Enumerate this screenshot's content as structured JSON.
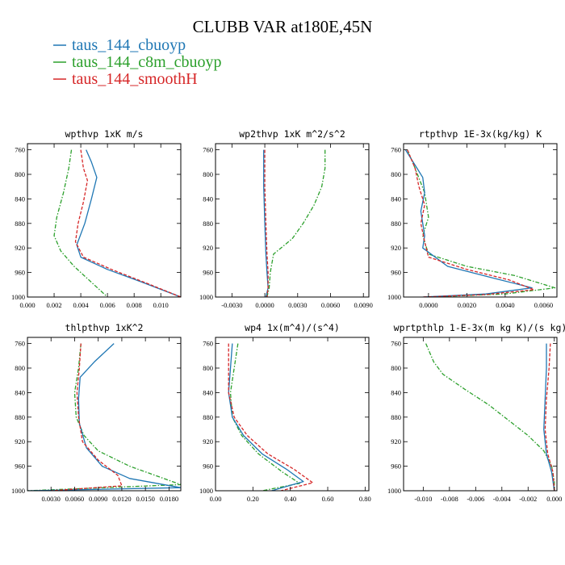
{
  "figure": {
    "title": "CLUBB VAR at180E,45N",
    "legend": [
      {
        "label": "taus_144_cbuoyp",
        "color": "#1f77b4",
        "dash": "solid"
      },
      {
        "label": "taus_144_c8m_cbuoyp",
        "color": "#2ca02c",
        "dash": "dashdot"
      },
      {
        "label": "taus_144_smoothH",
        "color": "#d62728",
        "dash": "dashed"
      }
    ]
  },
  "chart_data": [
    {
      "type": "line",
      "title": "wpthvp  1xK m/s",
      "xlim": [
        0.0,
        0.0115
      ],
      "ylim": [
        750,
        1000
      ],
      "y_reversed": true,
      "xticks": [
        0.0,
        0.002,
        0.004,
        0.006,
        0.008,
        0.01
      ],
      "xtick_labels": [
        "0.000",
        "0.002",
        "0.004",
        "0.006",
        "0.008",
        "0.010"
      ],
      "yticks": [
        760,
        800,
        840,
        880,
        920,
        960,
        1000
      ],
      "series": [
        {
          "color": "#1f77b4",
          "dash": "solid",
          "points": [
            [
              0.0044,
              760
            ],
            [
              0.0048,
              780
            ],
            [
              0.0052,
              805
            ],
            [
              0.0048,
              840
            ],
            [
              0.0043,
              880
            ],
            [
              0.0037,
              915
            ],
            [
              0.004,
              935
            ],
            [
              0.006,
              955
            ],
            [
              0.0085,
              975
            ],
            [
              0.0115,
              1000
            ]
          ]
        },
        {
          "color": "#2ca02c",
          "dash": "dashdot",
          "points": [
            [
              0.0033,
              760
            ],
            [
              0.0031,
              790
            ],
            [
              0.0027,
              830
            ],
            [
              0.0022,
              870
            ],
            [
              0.002,
              900
            ],
            [
              0.0025,
              925
            ],
            [
              0.0035,
              950
            ],
            [
              0.0045,
              970
            ],
            [
              0.0055,
              990
            ],
            [
              0.006,
              1000
            ]
          ]
        },
        {
          "color": "#d62728",
          "dash": "dashed",
          "points": [
            [
              0.004,
              760
            ],
            [
              0.0042,
              790
            ],
            [
              0.0045,
              810
            ],
            [
              0.0042,
              845
            ],
            [
              0.0038,
              880
            ],
            [
              0.0036,
              910
            ],
            [
              0.0042,
              935
            ],
            [
              0.0063,
              955
            ],
            [
              0.009,
              978
            ],
            [
              0.0115,
              1000
            ]
          ]
        }
      ]
    },
    {
      "type": "line",
      "title": "wp2thvp  1xK m^2/s^2",
      "xlim": [
        -0.0045,
        0.0095
      ],
      "ylim": [
        750,
        1000
      ],
      "y_reversed": true,
      "xticks": [
        -0.003,
        0.0,
        0.003,
        0.006,
        0.009
      ],
      "xtick_labels": [
        "-0.0030",
        "0.0000",
        "0.0030",
        "0.0060",
        "0.0090"
      ],
      "yticks": [
        760,
        800,
        840,
        880,
        920,
        960,
        1000
      ],
      "series": [
        {
          "color": "#2ca02c",
          "dash": "dashdot",
          "points": [
            [
              0.0055,
              760
            ],
            [
              0.0055,
              790
            ],
            [
              0.0052,
              820
            ],
            [
              0.0045,
              850
            ],
            [
              0.0035,
              880
            ],
            [
              0.0025,
              905
            ],
            [
              0.0008,
              930
            ],
            [
              0.0005,
              960
            ],
            [
              0.0004,
              985
            ],
            [
              0.0002,
              1000
            ]
          ]
        },
        {
          "color": "#1f77b4",
          "dash": "solid",
          "points": [
            [
              -0.0001,
              760
            ],
            [
              -0.0001,
              820
            ],
            [
              0.0,
              880
            ],
            [
              0.0001,
              930
            ],
            [
              0.0002,
              960
            ],
            [
              0.0003,
              985
            ],
            [
              0.0001,
              1000
            ]
          ]
        },
        {
          "color": "#d62728",
          "dash": "dashed",
          "points": [
            [
              0.0,
              760
            ],
            [
              0.0,
              820
            ],
            [
              0.0001,
              880
            ],
            [
              0.0002,
              930
            ],
            [
              0.0003,
              960
            ],
            [
              0.0003,
              985
            ],
            [
              0.0002,
              1000
            ]
          ]
        }
      ]
    },
    {
      "type": "line",
      "title": "rtpthvp  1E-3x(kg/kg) K",
      "xlim": [
        -0.0013,
        0.0067
      ],
      "ylim": [
        750,
        1000
      ],
      "y_reversed": true,
      "xticks": [
        0.0,
        0.002,
        0.004,
        0.006
      ],
      "xtick_labels": [
        "0.0000",
        "0.0020",
        "0.0040",
        "0.0060"
      ],
      "yticks": [
        760,
        800,
        840,
        880,
        920,
        960,
        1000
      ],
      "series": [
        {
          "color": "#2ca02c",
          "dash": "dashdot",
          "points": [
            [
              -0.0011,
              760
            ],
            [
              -0.0007,
              790
            ],
            [
              -0.0002,
              830
            ],
            [
              0.0,
              870
            ],
            [
              -0.0003,
              900
            ],
            [
              0.0,
              930
            ],
            [
              0.002,
              950
            ],
            [
              0.0045,
              965
            ],
            [
              0.0066,
              985
            ],
            [
              0.004,
              995
            ],
            [
              0.0,
              1000
            ]
          ]
        },
        {
          "color": "#1f77b4",
          "dash": "solid",
          "points": [
            [
              -0.0012,
              760
            ],
            [
              -0.0006,
              790
            ],
            [
              -0.0003,
              805
            ],
            [
              -0.0002,
              830
            ],
            [
              -0.0004,
              860
            ],
            [
              -0.0002,
              900
            ],
            [
              -0.0003,
              920
            ],
            [
              0.001,
              950
            ],
            [
              0.0035,
              970
            ],
            [
              0.0054,
              985
            ],
            [
              0.003,
              995
            ],
            [
              -0.0003,
              1000
            ]
          ]
        },
        {
          "color": "#d62728",
          "dash": "dashed",
          "points": [
            [
              -0.0011,
              760
            ],
            [
              -0.0007,
              790
            ],
            [
              -0.0005,
              820
            ],
            [
              -0.0002,
              850
            ],
            [
              -0.0004,
              880
            ],
            [
              -0.0002,
              910
            ],
            [
              0.0,
              935
            ],
            [
              0.002,
              955
            ],
            [
              0.0042,
              972
            ],
            [
              0.0055,
              988
            ],
            [
              0.003,
              996
            ],
            [
              -0.0003,
              1000
            ]
          ]
        }
      ]
    },
    {
      "type": "line",
      "title": "thlpthvp  1xK^2",
      "xlim": [
        0.0,
        0.0195
      ],
      "ylim": [
        750,
        1000
      ],
      "y_reversed": true,
      "xticks": [
        0.003,
        0.006,
        0.009,
        0.012,
        0.015,
        0.018
      ],
      "xtick_labels": [
        "0.0030",
        "0.0060",
        "0.0090",
        "0.0120",
        "0.0150",
        "0.0180"
      ],
      "yticks": [
        760,
        800,
        840,
        880,
        920,
        960,
        1000
      ],
      "series": [
        {
          "color": "#2ca02c",
          "dash": "dashdot",
          "points": [
            [
              0.0068,
              760
            ],
            [
              0.0065,
              800
            ],
            [
              0.006,
              840
            ],
            [
              0.0062,
              880
            ],
            [
              0.0072,
              910
            ],
            [
              0.009,
              935
            ],
            [
              0.013,
              960
            ],
            [
              0.0195,
              990
            ],
            [
              0.0,
              1000
            ]
          ]
        },
        {
          "color": "#1f77b4",
          "dash": "solid",
          "points": [
            [
              0.011,
              760
            ],
            [
              0.0085,
              790
            ],
            [
              0.0067,
              815
            ],
            [
              0.0065,
              850
            ],
            [
              0.0066,
              890
            ],
            [
              0.0075,
              930
            ],
            [
              0.0095,
              960
            ],
            [
              0.013,
              980
            ],
            [
              0.0195,
              995
            ],
            [
              0.0,
              1000
            ]
          ]
        },
        {
          "color": "#d62728",
          "dash": "dashed",
          "points": [
            [
              0.0068,
              760
            ],
            [
              0.0066,
              800
            ],
            [
              0.0063,
              840
            ],
            [
              0.0065,
              880
            ],
            [
              0.007,
              920
            ],
            [
              0.009,
              950
            ],
            [
              0.0115,
              975
            ],
            [
              0.012,
              992
            ],
            [
              0.003,
              1000
            ]
          ]
        }
      ]
    },
    {
      "type": "line",
      "title": "wp4  1x(m^4)/(s^4)",
      "xlim": [
        0.0,
        0.82
      ],
      "ylim": [
        750,
        1000
      ],
      "y_reversed": true,
      "xticks": [
        0.0,
        0.2,
        0.4,
        0.6,
        0.8
      ],
      "xtick_labels": [
        "0.00",
        "0.20",
        "0.40",
        "0.60",
        "0.80"
      ],
      "yticks": [
        760,
        800,
        840,
        880,
        920,
        960,
        1000
      ],
      "series": [
        {
          "color": "#2ca02c",
          "dash": "dashdot",
          "points": [
            [
              0.12,
              760
            ],
            [
              0.1,
              800
            ],
            [
              0.08,
              840
            ],
            [
              0.09,
              880
            ],
            [
              0.14,
              910
            ],
            [
              0.23,
              940
            ],
            [
              0.36,
              970
            ],
            [
              0.45,
              988
            ],
            [
              0.25,
              1000
            ]
          ]
        },
        {
          "color": "#1f77b4",
          "dash": "solid",
          "points": [
            [
              0.09,
              760
            ],
            [
              0.08,
              800
            ],
            [
              0.07,
              840
            ],
            [
              0.09,
              880
            ],
            [
              0.15,
              910
            ],
            [
              0.25,
              940
            ],
            [
              0.38,
              965
            ],
            [
              0.47,
              985
            ],
            [
              0.3,
              1000
            ]
          ]
        },
        {
          "color": "#d62728",
          "dash": "dashed",
          "points": [
            [
              0.07,
              760
            ],
            [
              0.07,
              800
            ],
            [
              0.07,
              840
            ],
            [
              0.1,
              880
            ],
            [
              0.17,
              910
            ],
            [
              0.28,
              940
            ],
            [
              0.42,
              965
            ],
            [
              0.52,
              987
            ],
            [
              0.35,
              1000
            ]
          ]
        }
      ]
    },
    {
      "type": "line",
      "title": "wprtpthlp  1-E-3x(m kg K)/(s kg)",
      "xlim": [
        -0.0115,
        0.0002
      ],
      "ylim": [
        750,
        1000
      ],
      "y_reversed": true,
      "xticks": [
        -0.01,
        -0.008,
        -0.006,
        -0.004,
        -0.002,
        0.0
      ],
      "xtick_labels": [
        "-0.010",
        "-0.008",
        "-0.006",
        "-0.004",
        "-0.002",
        "0.000"
      ],
      "yticks": [
        760,
        800,
        840,
        880,
        920,
        960,
        1000
      ],
      "series": [
        {
          "color": "#2ca02c",
          "dash": "dashdot",
          "points": [
            [
              -0.0098,
              760
            ],
            [
              -0.0092,
              790
            ],
            [
              -0.0085,
              810
            ],
            [
              -0.0068,
              835
            ],
            [
              -0.005,
              860
            ],
            [
              -0.0035,
              885
            ],
            [
              -0.002,
              910
            ],
            [
              -0.0008,
              935
            ],
            [
              -0.0002,
              960
            ],
            [
              0.0,
              985
            ],
            [
              0.0,
              1000
            ]
          ]
        },
        {
          "color": "#1f77b4",
          "dash": "solid",
          "points": [
            [
              -0.0006,
              760
            ],
            [
              -0.0006,
              800
            ],
            [
              -0.0007,
              850
            ],
            [
              -0.0008,
              900
            ],
            [
              -0.0006,
              940
            ],
            [
              -0.0002,
              970
            ],
            [
              0.0,
              1000
            ]
          ]
        },
        {
          "color": "#d62728",
          "dash": "dashed",
          "points": [
            [
              -0.0003,
              760
            ],
            [
              -0.0004,
              800
            ],
            [
              -0.0006,
              850
            ],
            [
              -0.0007,
              900
            ],
            [
              -0.0005,
              940
            ],
            [
              -0.0001,
              970
            ],
            [
              0.0,
              1000
            ]
          ]
        }
      ]
    }
  ]
}
